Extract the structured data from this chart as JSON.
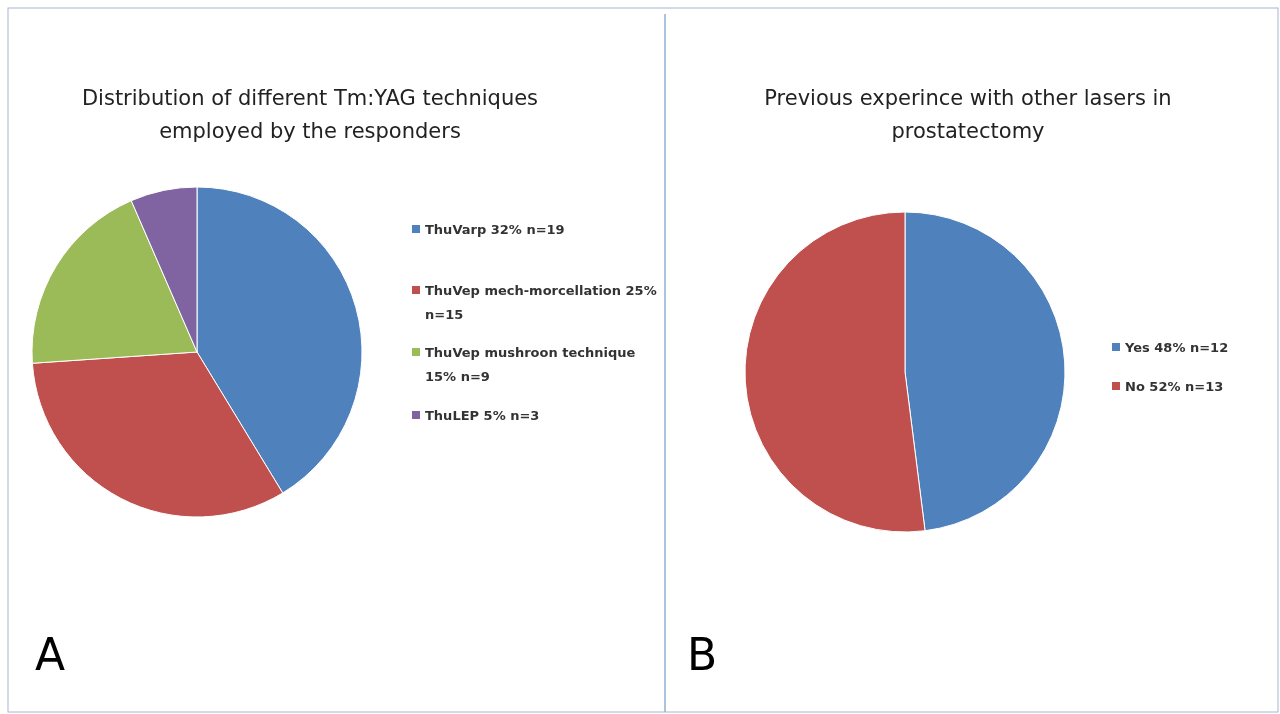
{
  "chart_data": [
    {
      "type": "pie",
      "title": "Distribution of different Tm:YAG techniques employed by the responders",
      "categories": [
        "ThuVarp 32% n=19",
        "ThuVep mech-morcellation 25% n=15",
        "ThuVep mushroon technique 15% n=9",
        "ThuLEP 5% n=3"
      ],
      "values": [
        19,
        15,
        9,
        3
      ],
      "colors": [
        "#4f81bd",
        "#c0504d",
        "#9bbb59",
        "#8064a2"
      ],
      "legend": "right",
      "annotations": [
        "A"
      ]
    },
    {
      "type": "pie",
      "title": "Previous experince with other lasers in prostatectomy",
      "categories": [
        "Yes 48% n=12",
        "No 52% n=13"
      ],
      "values": [
        12,
        13
      ],
      "colors": [
        "#4f81bd",
        "#c0504d"
      ],
      "legend": "right",
      "annotations": [
        "B"
      ]
    }
  ]
}
